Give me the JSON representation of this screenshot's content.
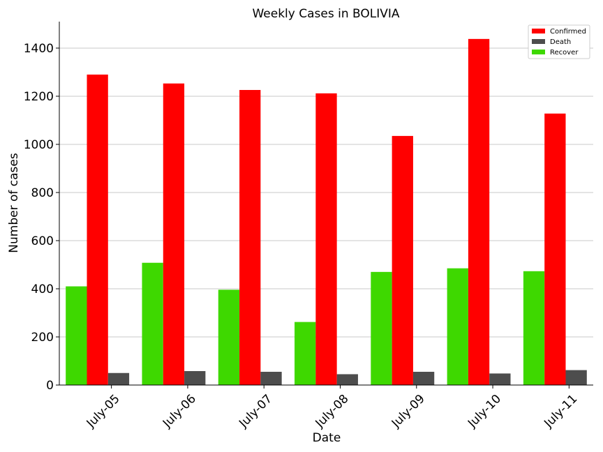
{
  "chart_data": {
    "type": "bar",
    "title": "Weekly Cases in BOLIVIA",
    "xlabel": "Date",
    "ylabel": "Number of cases",
    "categories": [
      "July-05",
      "July-06",
      "July-07",
      "July-08",
      "July-09",
      "July-10",
      "July-11"
    ],
    "series": [
      {
        "name": "Recover",
        "color": "#3ed800",
        "values": [
          410,
          508,
          396,
          262,
          470,
          485,
          473
        ]
      },
      {
        "name": "Confirmed",
        "color": "#ff0000",
        "values": [
          1290,
          1253,
          1226,
          1212,
          1035,
          1438,
          1128
        ]
      },
      {
        "name": "Death",
        "color": "#4d4d4d",
        "values": [
          50,
          58,
          55,
          45,
          55,
          48,
          62
        ]
      }
    ],
    "legend_order": [
      "Confirmed",
      "Death",
      "Recover"
    ],
    "ylim": [
      0,
      1510
    ],
    "yticks": [
      0,
      200,
      400,
      600,
      800,
      1000,
      1200,
      1400
    ],
    "grid": "horizontal",
    "legend_position": "top-right"
  }
}
